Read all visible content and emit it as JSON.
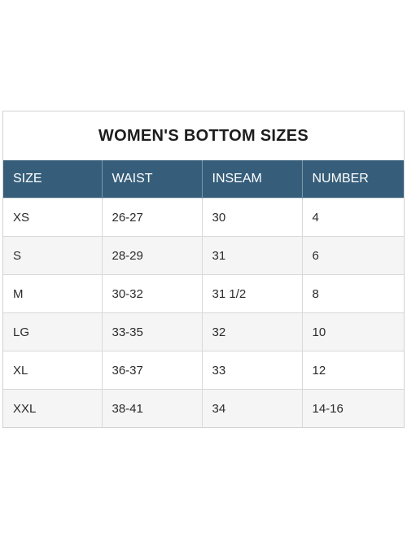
{
  "chart": {
    "title": "WOMEN'S BOTTOM SIZES",
    "columns": [
      "SIZE",
      "WAIST",
      "INSEAM",
      "NUMBER"
    ],
    "rows": [
      [
        "XS",
        "26-27",
        "30",
        "4"
      ],
      [
        "S",
        "28-29",
        "31",
        "6"
      ],
      [
        "M",
        "30-32",
        "31 1/2",
        "8"
      ],
      [
        "LG",
        "33-35",
        "32",
        "10"
      ],
      [
        "XL",
        "36-37",
        "33",
        "12"
      ],
      [
        "XXL",
        "38-41",
        "34",
        "14-16"
      ]
    ]
  },
  "colors": {
    "header_bg": "#365e7a",
    "header_text": "#ffffff",
    "alt_row_bg": "#f5f5f5"
  }
}
